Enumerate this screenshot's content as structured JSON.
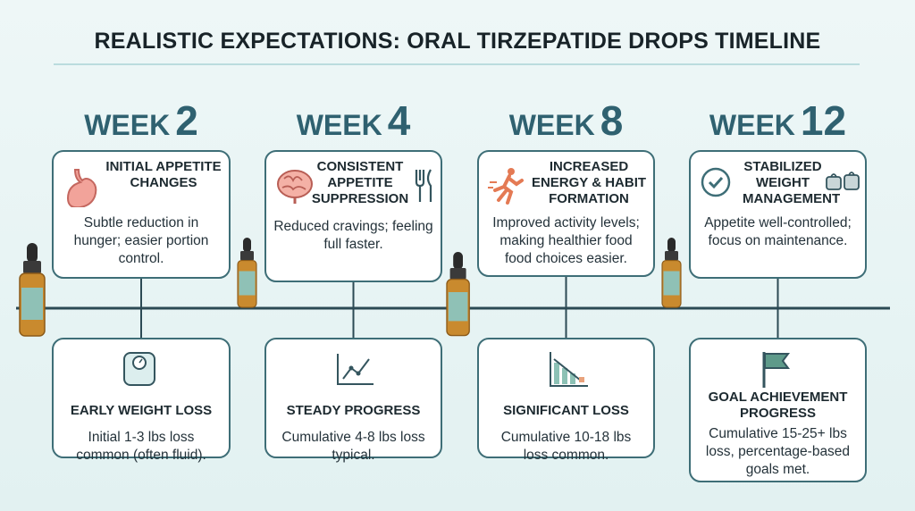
{
  "title": "REALISTIC EXPECTATIONS: ORAL TIRZEPATIDE DROPS TIMELINE",
  "columns": [
    {
      "week_word": "WEEK",
      "week_number": "2",
      "top": {
        "title": "INITIAL APPETITE CHANGES",
        "body": "Subtle reduction in hunger; easier portion control."
      },
      "bottom": {
        "title": "EARLY WEIGHT LOSS",
        "body": "Initial 1-3 lbs loss common (often fluid)."
      }
    },
    {
      "week_word": "WEEK",
      "week_number": "4",
      "top": {
        "title": "CONSISTENT APPETITE SUPPRESSION",
        "body": "Reduced cravings; feeling full faster."
      },
      "bottom": {
        "title": "STEADY PROGRESS",
        "body": "Cumulative 4-8 lbs loss typical."
      }
    },
    {
      "week_word": "WEEK",
      "week_number": "8",
      "top": {
        "title": "INCREASED ENERGY & HABIT FORMATION",
        "body": "Improved activity levels; making healthier food food choices easier."
      },
      "bottom": {
        "title": "SIGNIFICANT LOSS",
        "body": "Cumulative 10-18 lbs loss common."
      }
    },
    {
      "week_word": "WEEK",
      "week_number": "12",
      "top": {
        "title": "STABILIZED WEIGHT MANAGEMENT",
        "body": "Appetite well-controlled; focus on maintenance."
      },
      "bottom": {
        "title": "GOAL ACHIEVEMENT PROGRESS",
        "body": "Cumulative 15-25+ lbs loss, percentage-based goals met."
      }
    }
  ]
}
